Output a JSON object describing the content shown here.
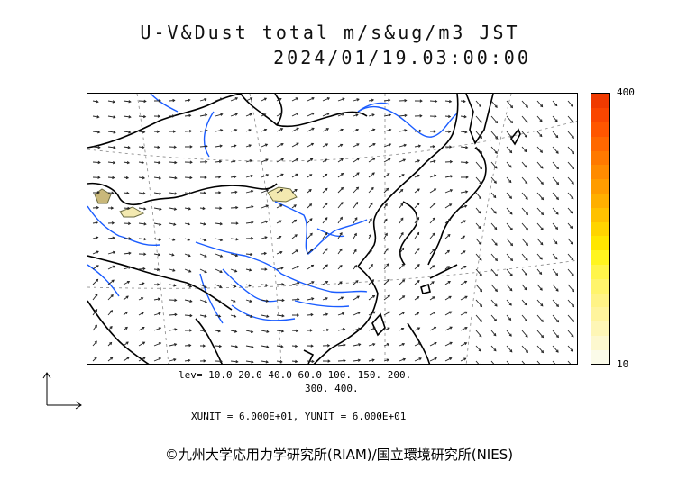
{
  "title": {
    "line1": "U-V&Dust total m/s&ug/m3 JST",
    "line2": "2024/01/19.03:00:00"
  },
  "colorbar": {
    "max_label": "400",
    "min_label": "10",
    "colors": [
      "#fbfbe9",
      "#fdf8cf",
      "#fef6b6",
      "#fff49d",
      "#fff386",
      "#fff46c",
      "#fff54a",
      "#fff51f",
      "#ffe600",
      "#ffd400",
      "#ffc100",
      "#ffaf00",
      "#ff9c00",
      "#ff8b00",
      "#ff7900",
      "#ff6800",
      "#ff5600",
      "#fa4600",
      "#f03a00"
    ]
  },
  "legend": {
    "levels_line1": "lev= 10.0 20.0 40.0 60.0 100. 150. 200.",
    "levels_line2": "300. 400.",
    "units": "XUNIT = 6.000E+01, YUNIT = 6.000E+01"
  },
  "map": {
    "water_color": "#1a5cff",
    "coast_color": "#000000",
    "dust_color": "#f3e9b0"
  },
  "copyright": "©九州大学応用力学研究所(RIAM)/国立環境研究所(NIES)"
}
